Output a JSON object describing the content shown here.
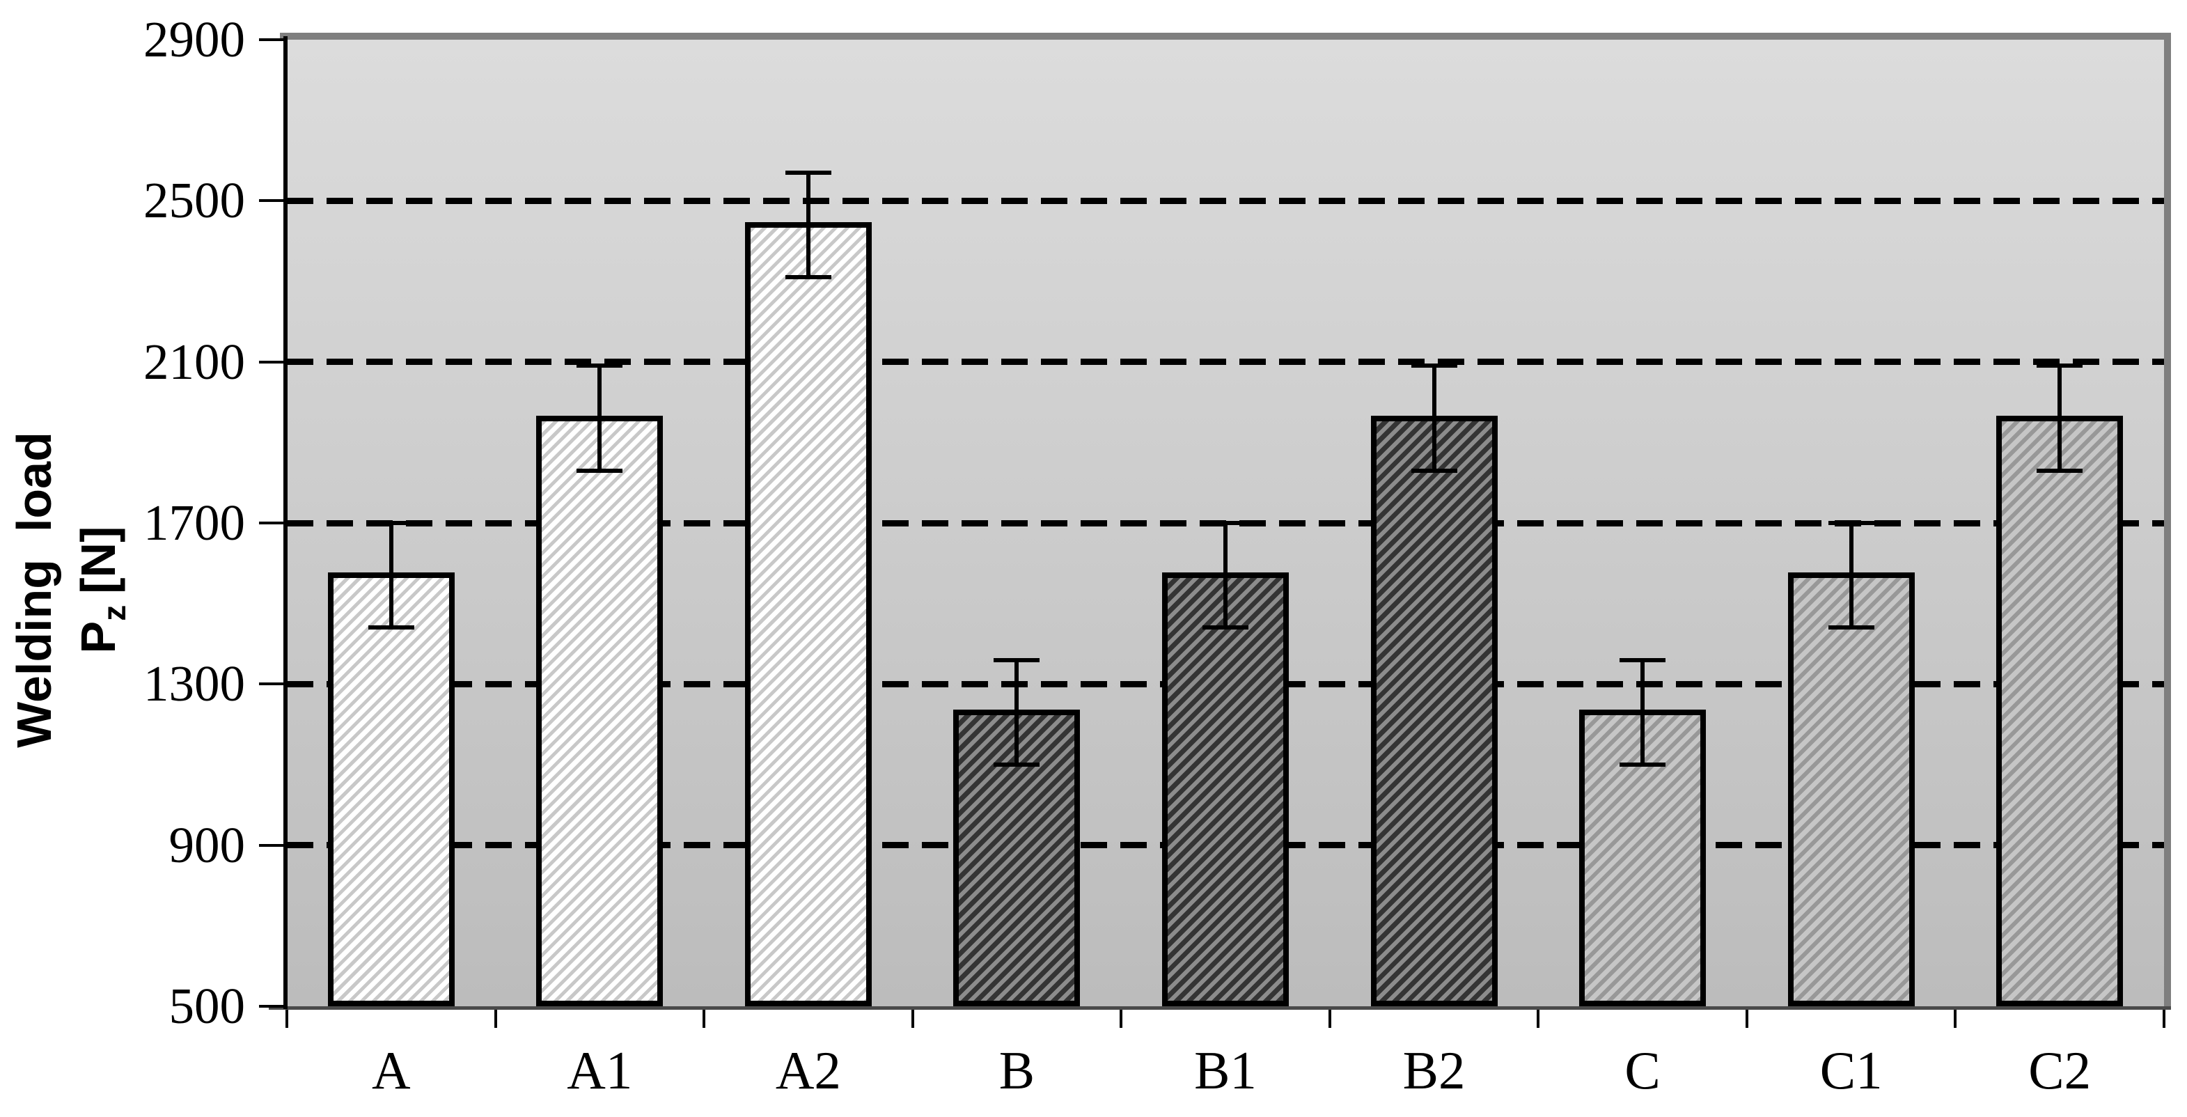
{
  "y_axis": {
    "title_line1": "Welding  load",
    "title_p": "P",
    "title_sub": "z",
    "title_unit": "[N]",
    "tick_labels": [
      "2900",
      "2500",
      "2100",
      "1700",
      "1300",
      "900",
      "500"
    ]
  },
  "x_axis": {
    "categories": [
      "A",
      "A1",
      "A2",
      "B",
      "B1",
      "B2",
      "C",
      "C1",
      "C2"
    ]
  },
  "chart_data": {
    "type": "bar",
    "title": "",
    "xlabel": "",
    "ylabel": "Welding load Pz [N]",
    "categories": [
      "A",
      "A1",
      "A2",
      "B",
      "B1",
      "B2",
      "C",
      "C1",
      "C2"
    ],
    "values": [
      1570,
      1960,
      2440,
      1230,
      1570,
      1960,
      1230,
      1570,
      1960
    ],
    "error_bars": [
      130,
      130,
      130,
      130,
      130,
      130,
      130,
      130,
      130
    ],
    "pattern_groups": [
      "A",
      "A",
      "A",
      "B",
      "B",
      "B",
      "C",
      "C",
      "C"
    ],
    "ylim": [
      500,
      2900
    ],
    "ytick_step": 400,
    "grid": "horizontal-dashed",
    "legend_position": "none"
  },
  "colors": {
    "page_background": "#ffffff",
    "plot_gradient_top": "#dcdcdc",
    "plot_gradient_bottom": "#bcbcbc",
    "frame": "#7f7f7f",
    "grid": "#000000",
    "bar_border": "#000000",
    "error_bar": "#000000",
    "pattern_a_bg": "#ffffff",
    "pattern_a_stripe": "#c8c8c8",
    "pattern_b_bg": "#343434",
    "pattern_b_stripe": "#8c8c8c",
    "pattern_c_bg": "#c6c6c6",
    "pattern_c_stripe": "#989898"
  }
}
